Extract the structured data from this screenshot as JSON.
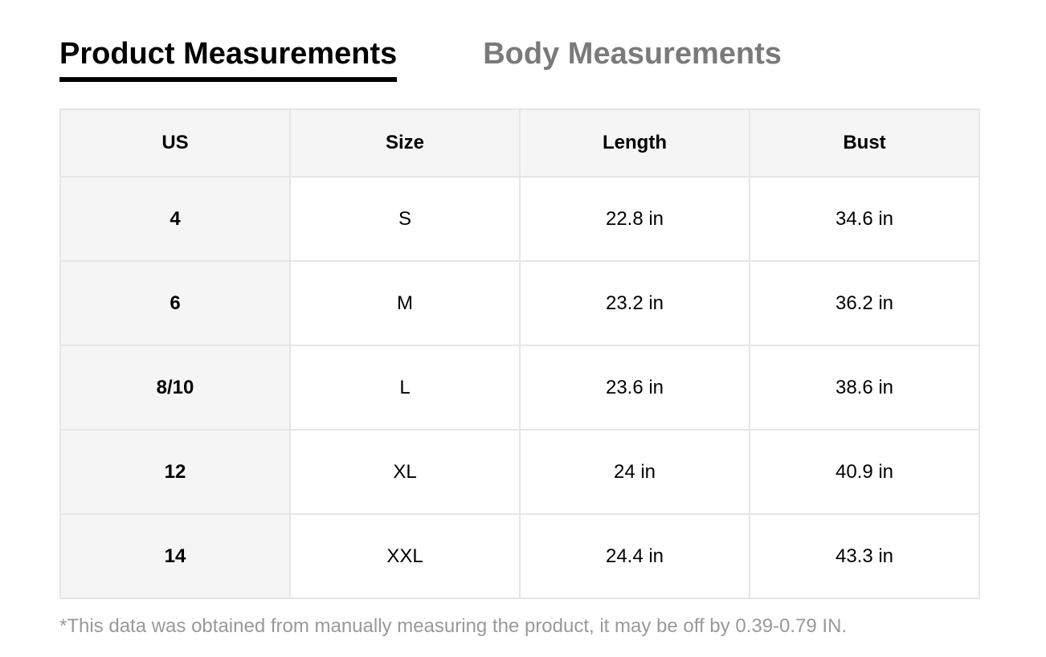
{
  "tabs": [
    {
      "label": "Product Measurements",
      "active": true
    },
    {
      "label": "Body Measurements",
      "active": false
    }
  ],
  "table": {
    "headers": [
      "US",
      "Size",
      "Length",
      "Bust"
    ],
    "rows": [
      [
        "4",
        "S",
        "22.8 in",
        "34.6 in"
      ],
      [
        "6",
        "M",
        "23.2 in",
        "36.2 in"
      ],
      [
        "8/10",
        "L",
        "23.6 in",
        "38.6 in"
      ],
      [
        "12",
        "XL",
        "24 in",
        "40.9 in"
      ],
      [
        "14",
        "XXL",
        "24.4 in",
        "43.3 in"
      ]
    ]
  },
  "note": "*This data was obtained from manually measuring the product, it may be off by 0.39-0.79 IN."
}
